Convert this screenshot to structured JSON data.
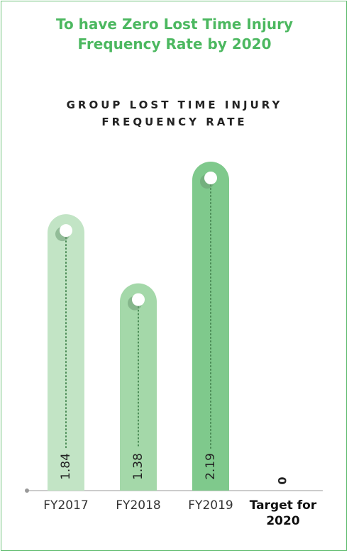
{
  "chart_data": {
    "type": "bar",
    "headline": "To have Zero Lost Time Injury Frequency Rate by 2020",
    "title": "GROUP LOST TIME INJURY FREQUENCY RATE",
    "categories": [
      "FY2017",
      "FY2018",
      "FY2019",
      "Target for 2020"
    ],
    "values": [
      1.84,
      1.38,
      2.19,
      0
    ],
    "colors": [
      "#c2e4c5",
      "#a4d8a9",
      "#7fc98c",
      "#7fc98c"
    ]
  }
}
